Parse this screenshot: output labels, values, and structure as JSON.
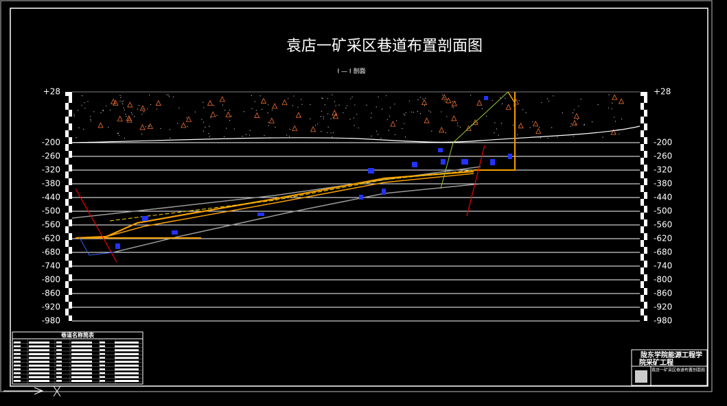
{
  "title": "袁店一矿采区巷道布置剖面图",
  "subtitle": "I — I 剖面",
  "elevations": [
    "+28",
    "-200",
    "-260",
    "-320",
    "-380",
    "-440",
    "-500",
    "-560",
    "-620",
    "-680",
    "-740",
    "-800",
    "-860",
    "-920",
    "-980"
  ],
  "table": {
    "title": "巷道名称简表"
  },
  "title_block": {
    "line1": "陇东学院能源工程学",
    "line2": "院采矿工程",
    "drawing": "袁店一矿采区巷道布置剖面图"
  }
}
